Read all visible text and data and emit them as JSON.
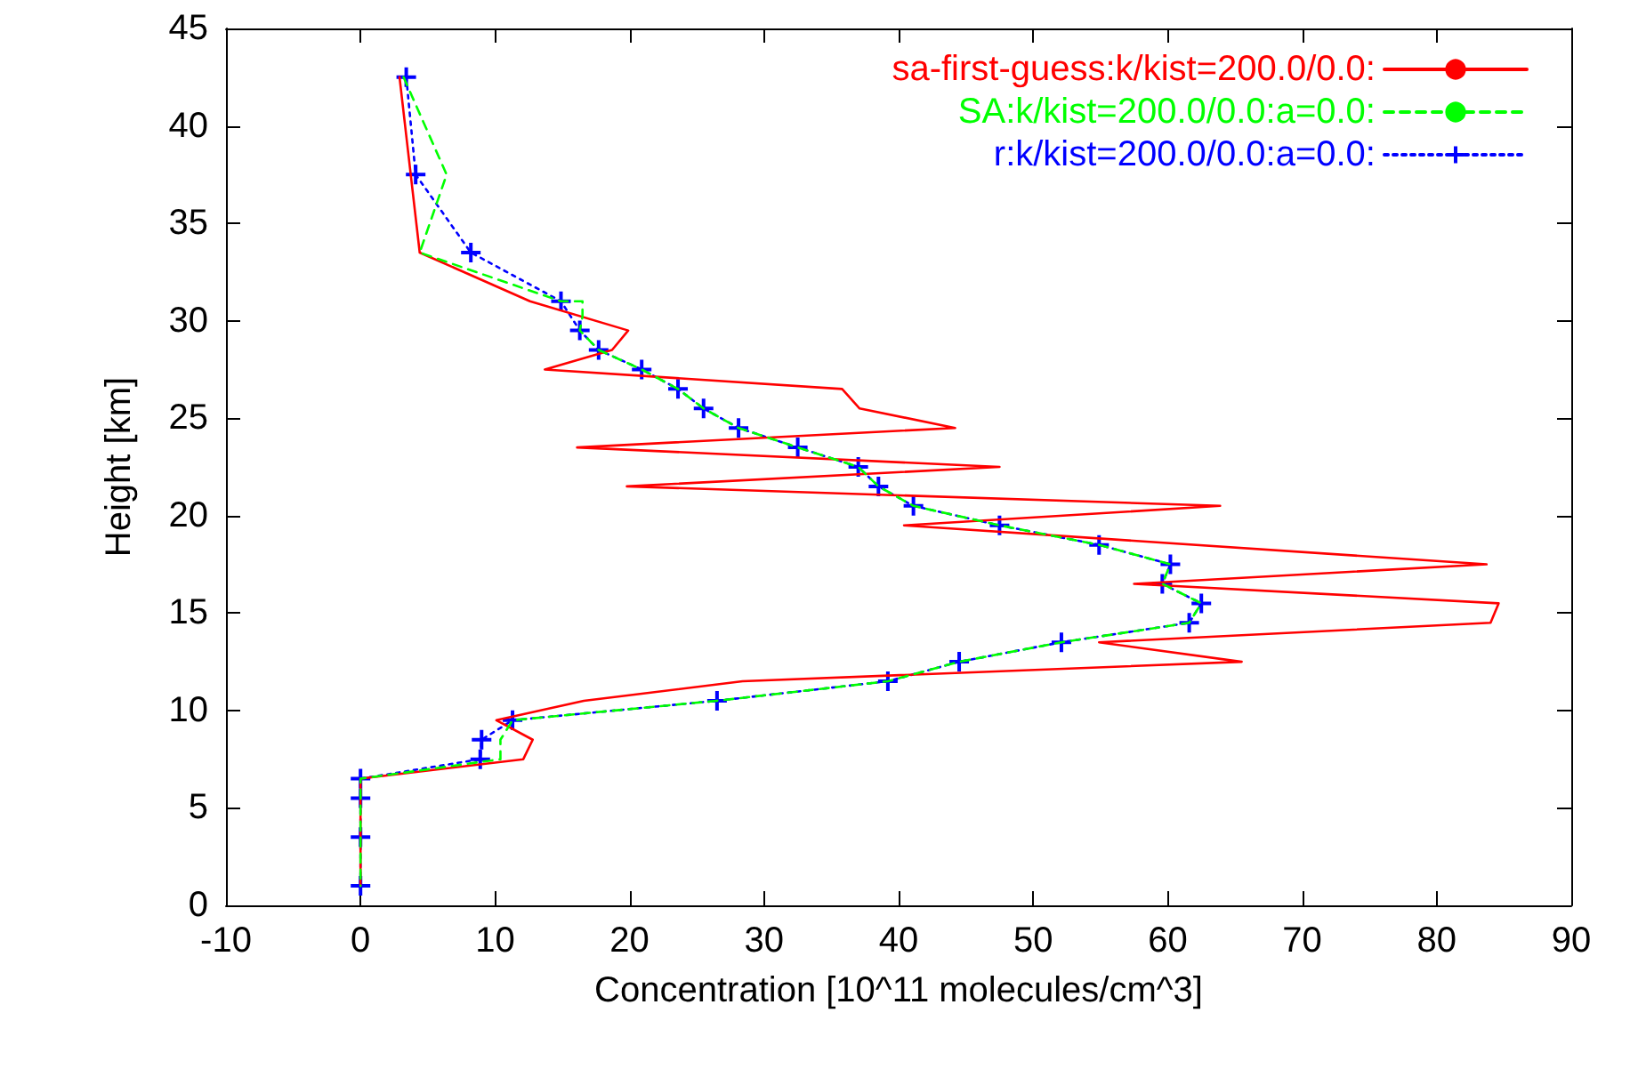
{
  "chart_data": {
    "type": "line",
    "xlabel": "Concentration [10^11 molecules/cm^3]",
    "ylabel": "Height [km]",
    "xlim": [
      -10,
      90
    ],
    "xticks": [
      -10,
      0,
      10,
      20,
      30,
      40,
      50,
      60,
      70,
      80,
      90
    ],
    "ylim": [
      0,
      45
    ],
    "yticks": [
      0,
      5,
      10,
      15,
      20,
      25,
      30,
      35,
      40,
      45
    ],
    "grid": false,
    "legend": "top right",
    "series": [
      {
        "name": "sa-first-guess:k/kist=200.0/0.0:",
        "color": "#ff0000",
        "line_style": "solid",
        "marker": "none",
        "x": [
          2.9,
          4.4,
          12.6,
          19.9,
          18.7,
          13.7,
          35.8,
          37.1,
          44.2,
          16.1,
          47.5,
          19.8,
          63.9,
          40.4,
          83.7,
          57.5,
          84.6,
          84.0,
          54.9,
          65.5,
          28.4,
          16.6,
          10.1,
          12.8,
          12.1,
          0,
          0
        ],
        "values": [
          42.5,
          33.5,
          31,
          29.5,
          28.5,
          27.5,
          26.5,
          25.5,
          24.5,
          23.5,
          22.5,
          21.5,
          20.5,
          19.5,
          17.5,
          16.5,
          15.5,
          14.5,
          13.5,
          12.5,
          11.5,
          10.5,
          9.5,
          8.5,
          7.5,
          6.5,
          1
        ]
      },
      {
        "name": "SA:k/kist=200.0/0.0:a=0.0:",
        "color": "#00ff00",
        "line_style": "dashed",
        "marker": "none",
        "x": [
          3.2,
          6.4,
          4.4,
          14.9,
          16.5,
          16.5,
          16.3,
          17.7,
          20.9,
          23.6,
          25.5,
          28.1,
          32.5,
          37.0,
          38.5,
          41.1,
          47.5,
          54.9,
          60.2,
          59.6,
          62.5,
          61.6,
          52.1,
          44.5,
          39.2,
          26.5,
          11.3,
          10.4,
          10.4,
          0,
          0,
          0,
          0
        ],
        "values": [
          42.5,
          37.5,
          33.5,
          31,
          31,
          30.2,
          29.5,
          28.5,
          27.5,
          26.5,
          25.5,
          24.5,
          23.5,
          22.5,
          21.5,
          20.5,
          19.5,
          18.5,
          17.5,
          16.5,
          15.5,
          14.5,
          13.5,
          12.5,
          11.5,
          10.5,
          9.5,
          8.5,
          7.5,
          6.5,
          5.5,
          3.5,
          1
        ]
      },
      {
        "name": "r:k/kist=200.0/0.0:a=0.0:",
        "color": "#0000ff",
        "line_style": "dotted",
        "marker": "cross",
        "x": [
          3.4,
          4.1,
          8.2,
          14.9,
          16.3,
          17.7,
          20.9,
          23.6,
          25.5,
          28.1,
          32.5,
          37.0,
          38.5,
          41.1,
          47.5,
          54.9,
          60.2,
          59.6,
          62.5,
          61.6,
          52.1,
          44.5,
          39.2,
          26.5,
          11.3,
          9.0,
          8.9,
          0,
          0,
          0,
          0
        ],
        "values": [
          42.5,
          37.5,
          33.5,
          31,
          29.5,
          28.5,
          27.5,
          26.5,
          25.5,
          24.5,
          23.5,
          22.5,
          21.5,
          20.5,
          19.5,
          18.5,
          17.5,
          16.5,
          15.5,
          14.5,
          13.5,
          12.5,
          11.5,
          10.5,
          9.5,
          8.5,
          7.5,
          6.5,
          5.5,
          3.5,
          1
        ]
      }
    ]
  }
}
